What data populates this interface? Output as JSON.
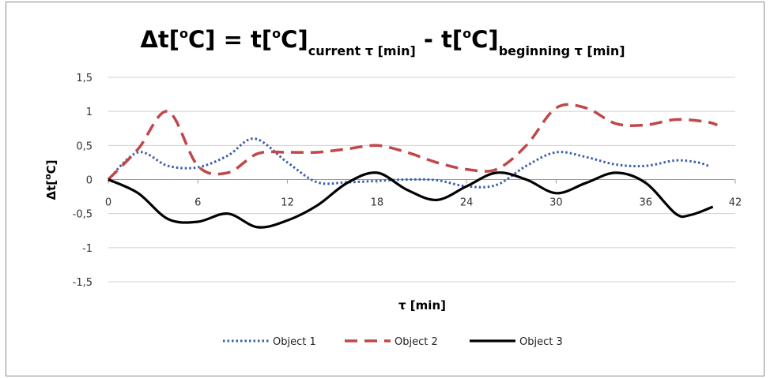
{
  "chart_data": {
    "type": "line",
    "title": {
      "lhs": "Δt[",
      "deg1": "o",
      "lhs_unit": "C] = t[",
      "deg2": "o",
      "term1": "C]",
      "sub1": "current τ [min]",
      "minus": " - t[",
      "deg3": "o",
      "term2": "C]",
      "sub2": "beginning τ [min]"
    },
    "xlabel": "τ [min]",
    "ylabel": {
      "pre": "Δt[",
      "deg": "o",
      "post": "C]"
    },
    "xlim": [
      0,
      42
    ],
    "ylim": [
      -1.5,
      1.5
    ],
    "x_ticks": [
      0,
      6,
      12,
      18,
      24,
      30,
      36,
      42
    ],
    "x_tick_labels": [
      "0",
      "6",
      "12",
      "18",
      "24",
      "30",
      "36",
      "42"
    ],
    "y_ticks": [
      1.5,
      1,
      0.5,
      0,
      -0.5,
      -1,
      -1.5
    ],
    "y_tick_labels": [
      "1,5",
      "1",
      "0,5",
      "0",
      "-0,5",
      "-1",
      "-1,5"
    ],
    "grid": "horizontal",
    "legend_position": "bottom",
    "series": [
      {
        "name": "Object 1",
        "color": "#3a5fa8",
        "style": "dotted",
        "points": [
          [
            0,
            0
          ],
          [
            2,
            0.4
          ],
          [
            4,
            0.2
          ],
          [
            6,
            0.18
          ],
          [
            8,
            0.35
          ],
          [
            9.8,
            0.6
          ],
          [
            12,
            0.25
          ],
          [
            14,
            -0.04
          ],
          [
            16,
            -0.04
          ],
          [
            18,
            -0.02
          ],
          [
            20,
            0
          ],
          [
            22,
            -0.01
          ],
          [
            24,
            -0.1
          ],
          [
            26,
            -0.08
          ],
          [
            28,
            0.2
          ],
          [
            30,
            0.4
          ],
          [
            32,
            0.33
          ],
          [
            34,
            0.22
          ],
          [
            36,
            0.2
          ],
          [
            38,
            0.28
          ],
          [
            39.5,
            0.25
          ],
          [
            40.2,
            0.2
          ]
        ]
      },
      {
        "name": "Object 2",
        "color": "#c0474a",
        "style": "dashed",
        "points": [
          [
            0,
            0
          ],
          [
            2,
            0.45
          ],
          [
            4,
            1.0
          ],
          [
            6,
            0.2
          ],
          [
            8,
            0.1
          ],
          [
            10,
            0.38
          ],
          [
            12,
            0.4
          ],
          [
            14,
            0.4
          ],
          [
            16,
            0.45
          ],
          [
            18,
            0.5
          ],
          [
            20,
            0.4
          ],
          [
            22,
            0.25
          ],
          [
            24,
            0.15
          ],
          [
            26,
            0.15
          ],
          [
            28,
            0.5
          ],
          [
            30,
            1.05
          ],
          [
            32,
            1.05
          ],
          [
            34,
            0.82
          ],
          [
            36,
            0.8
          ],
          [
            38,
            0.88
          ],
          [
            40,
            0.85
          ],
          [
            40.8,
            0.8
          ]
        ]
      },
      {
        "name": "Object 3",
        "color": "#000000",
        "style": "solid",
        "points": [
          [
            0,
            0
          ],
          [
            2,
            -0.2
          ],
          [
            4,
            -0.58
          ],
          [
            6,
            -0.62
          ],
          [
            8,
            -0.5
          ],
          [
            10,
            -0.7
          ],
          [
            12,
            -0.6
          ],
          [
            14,
            -0.38
          ],
          [
            16,
            -0.05
          ],
          [
            18,
            0.1
          ],
          [
            20,
            -0.15
          ],
          [
            22,
            -0.3
          ],
          [
            24,
            -0.1
          ],
          [
            26,
            0.1
          ],
          [
            28,
            0
          ],
          [
            30,
            -0.2
          ],
          [
            32,
            -0.05
          ],
          [
            34,
            0.1
          ],
          [
            36,
            -0.05
          ],
          [
            38,
            -0.5
          ],
          [
            39,
            -0.52
          ],
          [
            40.5,
            -0.4
          ]
        ]
      }
    ]
  }
}
